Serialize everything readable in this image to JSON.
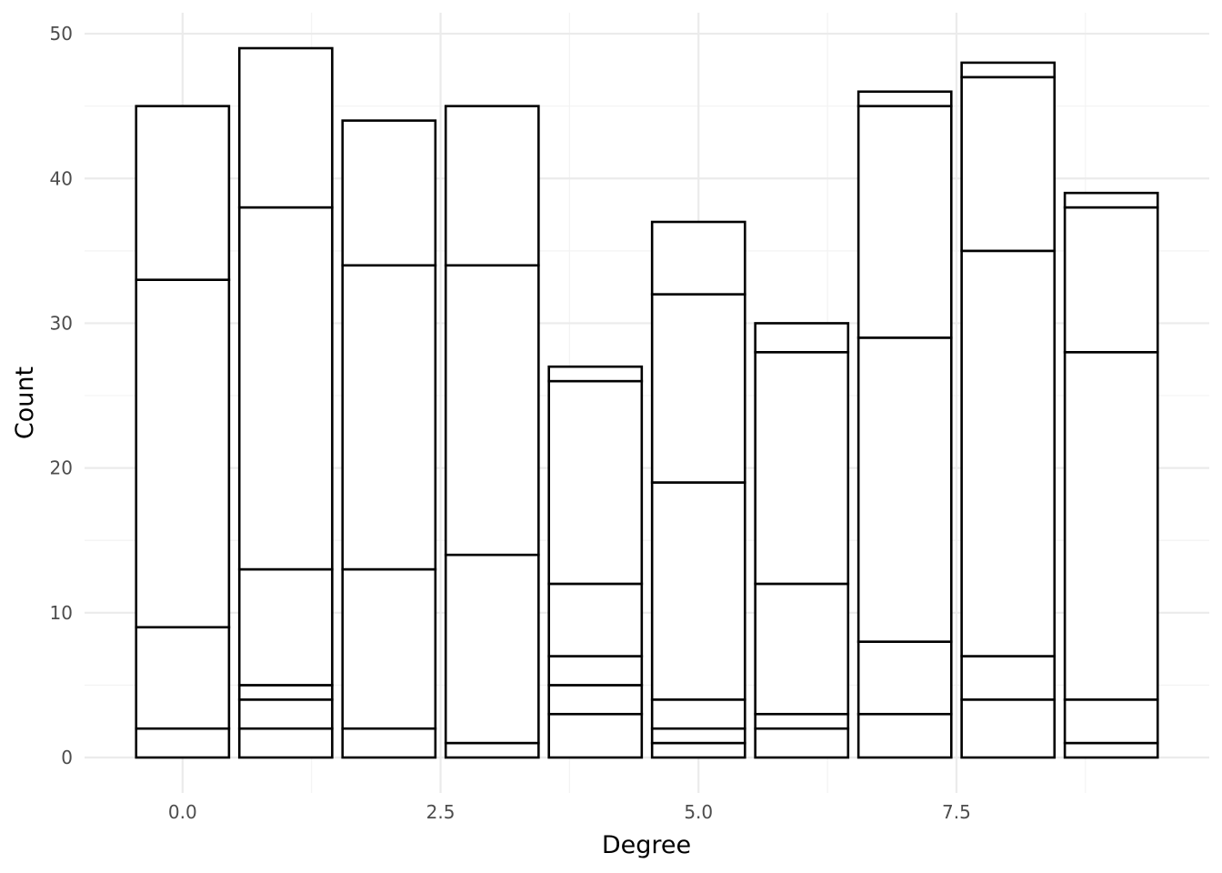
{
  "chart_data": {
    "type": "bar",
    "stacked": true,
    "title": "",
    "xlabel": "Degree",
    "ylabel": "Count",
    "x": [
      0,
      1,
      2,
      3,
      4,
      5,
      6,
      7,
      8,
      9
    ],
    "segment_tops": [
      [
        2,
        9,
        33,
        45
      ],
      [
        2,
        4,
        5,
        13,
        38,
        49
      ],
      [
        2,
        13,
        34,
        44
      ],
      [
        1,
        14,
        34,
        45
      ],
      [
        3,
        5,
        7,
        12,
        26,
        27
      ],
      [
        1,
        2,
        4,
        19,
        32,
        37
      ],
      [
        2,
        3,
        12,
        28,
        30
      ],
      [
        3,
        8,
        29,
        45,
        46
      ],
      [
        4,
        7,
        35,
        47,
        48
      ],
      [
        1,
        4,
        28,
        38,
        39
      ]
    ],
    "totals": [
      45,
      49,
      44,
      45,
      27,
      37,
      30,
      46,
      48,
      39
    ],
    "bar_width": 0.9,
    "xlim": [
      -0.95,
      9.95
    ],
    "ylim": [
      -2.45,
      51.45
    ],
    "x_ticks": [
      0.0,
      2.5,
      5.0,
      7.5
    ],
    "x_tick_labels": [
      "0.0",
      "2.5",
      "5.0",
      "7.5"
    ],
    "y_ticks": [
      0,
      10,
      20,
      30,
      40,
      50
    ],
    "y_tick_labels": [
      "0",
      "10",
      "20",
      "30",
      "40",
      "50"
    ],
    "grid": true,
    "legend": "none",
    "colors": {
      "bar_fill": "#ffffff",
      "bar_stroke": "#000000",
      "grid": "#ebebeb",
      "tick_text": "#4d4d4d"
    }
  }
}
